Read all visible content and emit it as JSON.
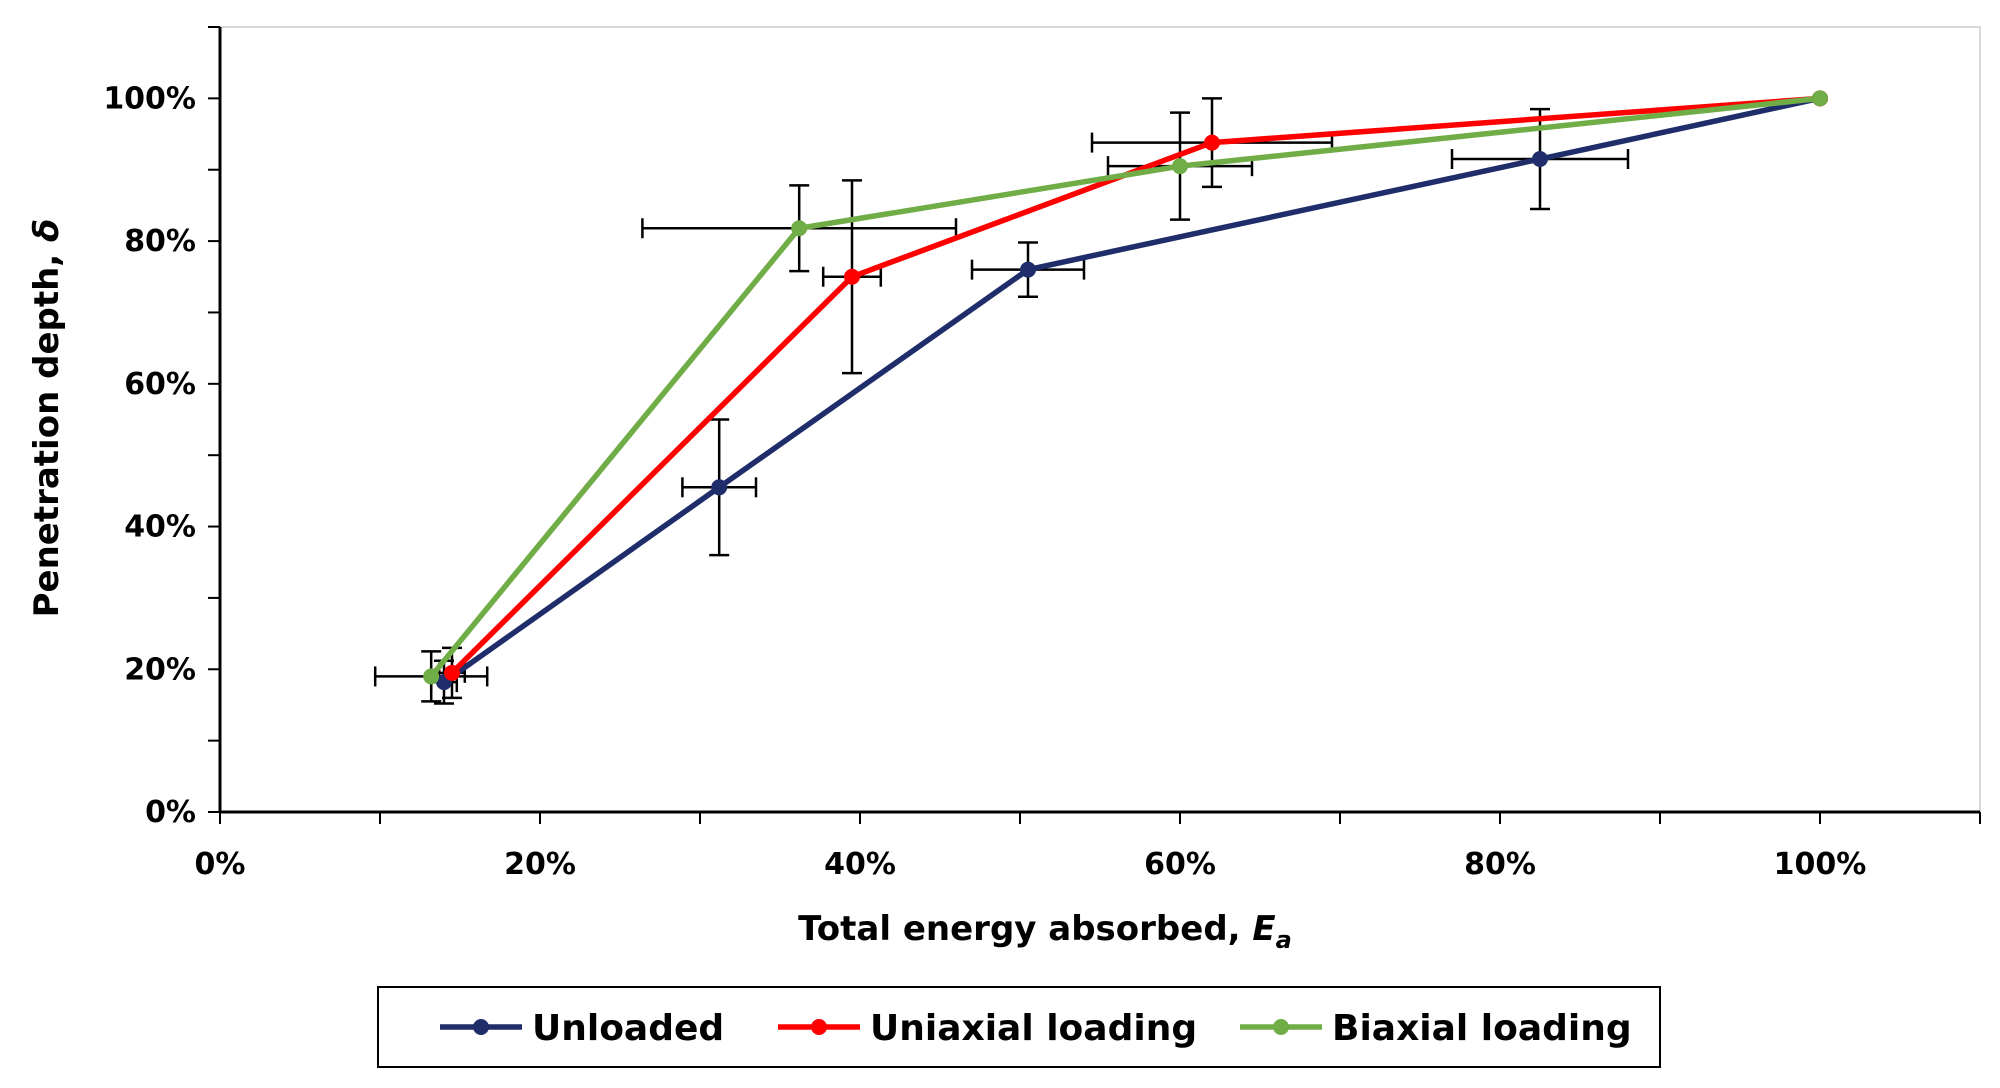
{
  "chart_data": {
    "type": "line",
    "title": "",
    "xlabel": "Total energy absorbed, ",
    "xlabel_symbol": "E",
    "xlabel_subscript": "a",
    "ylabel": "Penetration depth, ",
    "ylabel_symbol": "δ",
    "xlim": [
      0,
      110
    ],
    "ylim": [
      0,
      110
    ],
    "x_ticks": [
      0,
      20,
      40,
      60,
      80,
      100
    ],
    "y_ticks": [
      0,
      20,
      40,
      60,
      80,
      100
    ],
    "x_tick_labels": [
      "0%",
      "20%",
      "40%",
      "60%",
      "80%",
      "100%"
    ],
    "y_tick_labels": [
      "0%",
      "20%",
      "40%",
      "60%",
      "80%",
      "100%"
    ],
    "grid": false,
    "legend_position": "bottom",
    "series": [
      {
        "name": "Unloaded",
        "color": "#1F2D6B",
        "points": [
          {
            "x": 14.0,
            "y": 18.2,
            "xerr": 0.8,
            "yerr": 3.0
          },
          {
            "x": 31.2,
            "y": 45.5,
            "xerr": 2.3,
            "yerr": 9.5
          },
          {
            "x": 50.5,
            "y": 76.0,
            "xerr": 3.5,
            "yerr": 3.8
          },
          {
            "x": 82.5,
            "y": 91.5,
            "xerr": 5.5,
            "yerr": 7.0
          },
          {
            "x": 100.0,
            "y": 100.0,
            "xerr": 0,
            "yerr": 0
          }
        ]
      },
      {
        "name": "Uniaxial loading",
        "color": "#FF0000",
        "points": [
          {
            "x": 14.5,
            "y": 19.5,
            "xerr": 0.8,
            "yerr": 3.5
          },
          {
            "x": 39.5,
            "y": 75.0,
            "xerr": 1.8,
            "yerr": 13.5
          },
          {
            "x": 62.0,
            "y": 93.8,
            "xerr": 7.5,
            "yerr": 6.2
          },
          {
            "x": 100.0,
            "y": 100.0,
            "xerr": 0,
            "yerr": 0
          }
        ]
      },
      {
        "name": "Biaxial loading",
        "color": "#70AD47",
        "points": [
          {
            "x": 13.2,
            "y": 19.0,
            "xerr": 3.5,
            "yerr": 3.5
          },
          {
            "x": 36.2,
            "y": 81.8,
            "xerr": 9.8,
            "yerr": 6.0
          },
          {
            "x": 60.0,
            "y": 90.5,
            "xerr": 4.5,
            "yerr": 7.5
          },
          {
            "x": 100.0,
            "y": 100.0,
            "xerr": 0,
            "yerr": 0
          }
        ]
      }
    ]
  }
}
